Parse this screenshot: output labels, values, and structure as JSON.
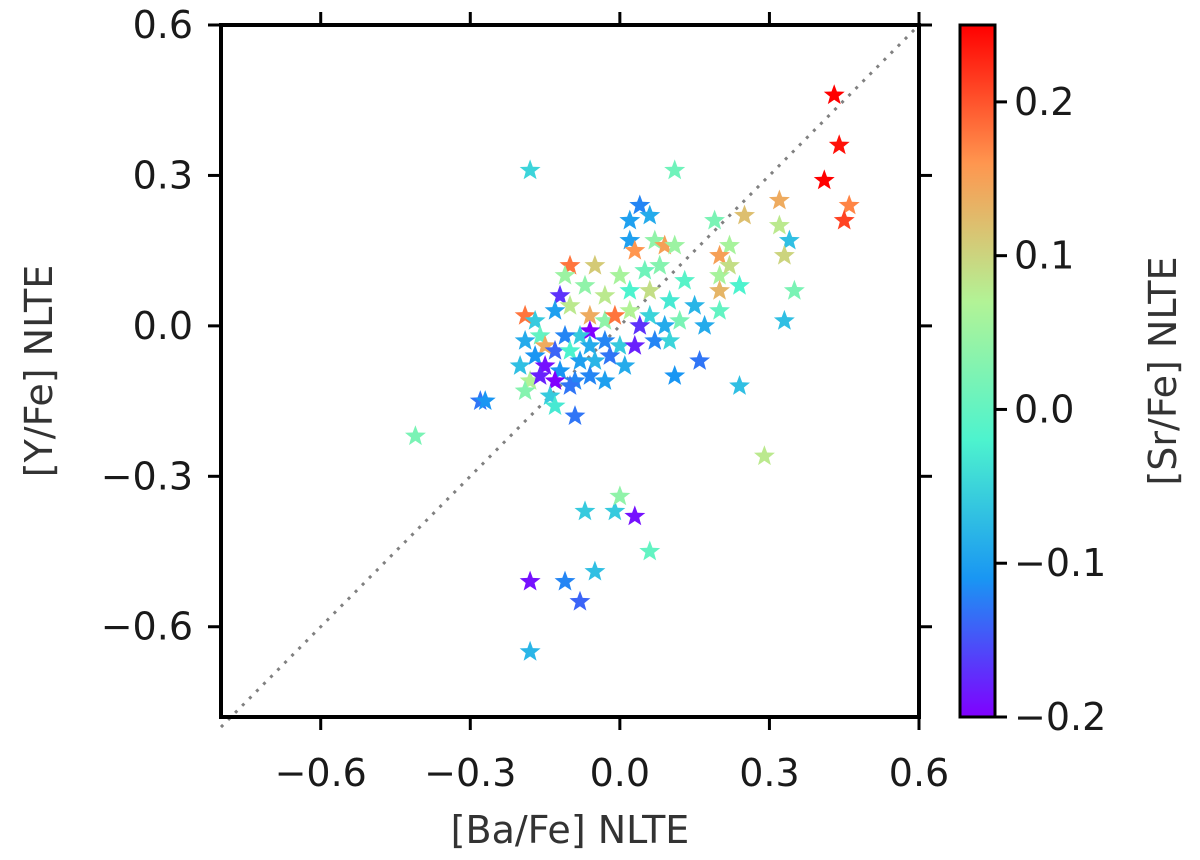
{
  "chart_data": {
    "type": "scatter",
    "marker": "star",
    "xlabel": "[Ba/Fe] NLTE",
    "ylabel": "[Y/Fe] NLTE",
    "xlim": [
      -0.8,
      0.6
    ],
    "ylim": [
      -0.78,
      0.6
    ],
    "xticks": [
      -0.6,
      -0.3,
      0.0,
      0.3,
      0.6
    ],
    "xtick_labels": [
      "−0.6",
      "−0.3",
      "0.0",
      "0.3",
      "0.6"
    ],
    "yticks": [
      -0.6,
      -0.3,
      0.0,
      0.3,
      0.6
    ],
    "ytick_labels": [
      "−0.6",
      "−0.3",
      "0.0",
      "0.3",
      "0.6"
    ],
    "reference_line": {
      "style": "dotted",
      "color": "#808080",
      "from": [
        -0.8,
        -0.8
      ],
      "to": [
        0.6,
        0.6
      ]
    },
    "colorbar": {
      "label": "[Sr/Fe] NLTE",
      "colormap": "rainbow",
      "range": [
        -0.2,
        0.25
      ],
      "ticks": [
        -0.2,
        -0.1,
        0.0,
        0.1,
        0.2
      ],
      "tick_labels": [
        "−0.2",
        "−0.1",
        "0.0",
        "0.1",
        "0.2"
      ],
      "gradient": [
        "#8000ff",
        "#1996f3",
        "#4df3ce",
        "#b2f396",
        "#ff964f",
        "#ff0000"
      ]
    },
    "points": [
      {
        "x": 0.43,
        "y": 0.46,
        "c": 0.25
      },
      {
        "x": 0.44,
        "y": 0.36,
        "c": 0.24
      },
      {
        "x": 0.41,
        "y": 0.29,
        "c": 0.25
      },
      {
        "x": 0.46,
        "y": 0.24,
        "c": 0.17
      },
      {
        "x": 0.45,
        "y": 0.21,
        "c": 0.21
      },
      {
        "x": 0.32,
        "y": 0.25,
        "c": 0.14
      },
      {
        "x": 0.25,
        "y": 0.22,
        "c": 0.12
      },
      {
        "x": 0.32,
        "y": 0.2,
        "c": 0.08
      },
      {
        "x": 0.34,
        "y": 0.17,
        "c": -0.07
      },
      {
        "x": 0.33,
        "y": 0.14,
        "c": 0.1
      },
      {
        "x": 0.35,
        "y": 0.07,
        "c": 0.02
      },
      {
        "x": 0.33,
        "y": 0.01,
        "c": -0.07
      },
      {
        "x": 0.24,
        "y": 0.08,
        "c": -0.02
      },
      {
        "x": 0.22,
        "y": 0.16,
        "c": 0.06
      },
      {
        "x": 0.19,
        "y": 0.21,
        "c": 0.02
      },
      {
        "x": 0.2,
        "y": 0.14,
        "c": 0.15
      },
      {
        "x": 0.2,
        "y": 0.1,
        "c": 0.06
      },
      {
        "x": 0.22,
        "y": 0.12,
        "c": 0.09
      },
      {
        "x": 0.2,
        "y": 0.07,
        "c": 0.13
      },
      {
        "x": 0.2,
        "y": 0.03,
        "c": 0.0
      },
      {
        "x": 0.24,
        "y": -0.12,
        "c": -0.07
      },
      {
        "x": 0.29,
        "y": -0.26,
        "c": 0.08
      },
      {
        "x": 0.16,
        "y": -0.07,
        "c": -0.13
      },
      {
        "x": 0.11,
        "y": -0.1,
        "c": -0.11
      },
      {
        "x": 0.11,
        "y": 0.31,
        "c": 0.01
      },
      {
        "x": -0.18,
        "y": 0.31,
        "c": -0.05
      },
      {
        "x": 0.04,
        "y": 0.24,
        "c": -0.12
      },
      {
        "x": 0.06,
        "y": 0.22,
        "c": -0.09
      },
      {
        "x": 0.02,
        "y": 0.21,
        "c": -0.1
      },
      {
        "x": 0.07,
        "y": 0.17,
        "c": 0.04
      },
      {
        "x": 0.09,
        "y": 0.16,
        "c": 0.15
      },
      {
        "x": 0.02,
        "y": 0.17,
        "c": -0.1
      },
      {
        "x": 0.11,
        "y": 0.16,
        "c": 0.05
      },
      {
        "x": 0.03,
        "y": 0.15,
        "c": 0.16
      },
      {
        "x": -0.05,
        "y": 0.12,
        "c": 0.11
      },
      {
        "x": -0.1,
        "y": 0.12,
        "c": 0.18
      },
      {
        "x": -0.11,
        "y": 0.1,
        "c": 0.05
      },
      {
        "x": -0.12,
        "y": 0.06,
        "c": -0.17
      },
      {
        "x": -0.07,
        "y": 0.08,
        "c": 0.04
      },
      {
        "x": -0.03,
        "y": 0.06,
        "c": 0.08
      },
      {
        "x": 0.0,
        "y": 0.1,
        "c": 0.06
      },
      {
        "x": 0.05,
        "y": 0.11,
        "c": 0.01
      },
      {
        "x": 0.08,
        "y": 0.12,
        "c": 0.03
      },
      {
        "x": 0.06,
        "y": 0.07,
        "c": 0.09
      },
      {
        "x": 0.02,
        "y": 0.07,
        "c": -0.02
      },
      {
        "x": 0.13,
        "y": 0.09,
        "c": -0.01
      },
      {
        "x": 0.1,
        "y": 0.05,
        "c": -0.03
      },
      {
        "x": 0.15,
        "y": 0.04,
        "c": -0.08
      },
      {
        "x": 0.12,
        "y": 0.01,
        "c": 0.02
      },
      {
        "x": 0.17,
        "y": 0.0,
        "c": -0.09
      },
      {
        "x": -0.19,
        "y": 0.02,
        "c": 0.18
      },
      {
        "x": -0.17,
        "y": 0.01,
        "c": -0.06
      },
      {
        "x": -0.13,
        "y": 0.03,
        "c": -0.1
      },
      {
        "x": -0.1,
        "y": 0.04,
        "c": 0.08
      },
      {
        "x": -0.06,
        "y": 0.02,
        "c": 0.14
      },
      {
        "x": -0.03,
        "y": 0.01,
        "c": 0.04
      },
      {
        "x": 0.02,
        "y": 0.03,
        "c": 0.07
      },
      {
        "x": 0.06,
        "y": 0.02,
        "c": -0.05
      },
      {
        "x": 0.09,
        "y": 0.0,
        "c": -0.09
      },
      {
        "x": 0.04,
        "y": 0.0,
        "c": -0.17
      },
      {
        "x": -0.01,
        "y": 0.02,
        "c": 0.18
      },
      {
        "x": -0.06,
        "y": -0.01,
        "c": -0.2
      },
      {
        "x": -0.08,
        "y": -0.02,
        "c": -0.06
      },
      {
        "x": -0.11,
        "y": -0.02,
        "c": -0.12
      },
      {
        "x": -0.16,
        "y": -0.02,
        "c": 0.0
      },
      {
        "x": -0.19,
        "y": -0.03,
        "c": -0.09
      },
      {
        "x": -0.15,
        "y": -0.04,
        "c": 0.14
      },
      {
        "x": -0.13,
        "y": -0.05,
        "c": -0.14
      },
      {
        "x": -0.1,
        "y": -0.05,
        "c": -0.02
      },
      {
        "x": -0.06,
        "y": -0.04,
        "c": -0.09
      },
      {
        "x": -0.03,
        "y": -0.03,
        "c": -0.12
      },
      {
        "x": 0.0,
        "y": -0.04,
        "c": -0.06
      },
      {
        "x": 0.03,
        "y": -0.04,
        "c": -0.18
      },
      {
        "x": 0.07,
        "y": -0.03,
        "c": -0.12
      },
      {
        "x": 0.1,
        "y": -0.03,
        "c": -0.05
      },
      {
        "x": -0.2,
        "y": -0.08,
        "c": -0.07
      },
      {
        "x": -0.17,
        "y": -0.06,
        "c": -0.11
      },
      {
        "x": -0.15,
        "y": -0.08,
        "c": -0.19
      },
      {
        "x": -0.12,
        "y": -0.09,
        "c": -0.11
      },
      {
        "x": -0.08,
        "y": -0.07,
        "c": -0.1
      },
      {
        "x": -0.05,
        "y": -0.07,
        "c": -0.08
      },
      {
        "x": -0.02,
        "y": -0.06,
        "c": -0.13
      },
      {
        "x": 0.01,
        "y": -0.08,
        "c": -0.09
      },
      {
        "x": -0.18,
        "y": -0.11,
        "c": 0.07
      },
      {
        "x": -0.16,
        "y": -0.1,
        "c": -0.18
      },
      {
        "x": -0.13,
        "y": -0.11,
        "c": -0.2
      },
      {
        "x": -0.09,
        "y": -0.11,
        "c": -0.12
      },
      {
        "x": -0.06,
        "y": -0.1,
        "c": -0.12
      },
      {
        "x": -0.03,
        "y": -0.11,
        "c": -0.1
      },
      {
        "x": -0.19,
        "y": -0.13,
        "c": 0.03
      },
      {
        "x": -0.14,
        "y": -0.14,
        "c": -0.06
      },
      {
        "x": -0.1,
        "y": -0.12,
        "c": -0.13
      },
      {
        "x": -0.13,
        "y": -0.16,
        "c": -0.03
      },
      {
        "x": -0.09,
        "y": -0.18,
        "c": -0.13
      },
      {
        "x": -0.28,
        "y": -0.15,
        "c": -0.13
      },
      {
        "x": -0.27,
        "y": -0.15,
        "c": -0.11
      },
      {
        "x": -0.41,
        "y": -0.22,
        "c": 0.02
      },
      {
        "x": -0.07,
        "y": -0.37,
        "c": -0.06
      },
      {
        "x": -0.01,
        "y": -0.37,
        "c": -0.06
      },
      {
        "x": 0.0,
        "y": -0.34,
        "c": 0.04
      },
      {
        "x": 0.03,
        "y": -0.38,
        "c": -0.19
      },
      {
        "x": 0.06,
        "y": -0.45,
        "c": 0.0
      },
      {
        "x": -0.05,
        "y": -0.49,
        "c": -0.07
      },
      {
        "x": -0.11,
        "y": -0.51,
        "c": -0.12
      },
      {
        "x": -0.18,
        "y": -0.51,
        "c": -0.19
      },
      {
        "x": -0.08,
        "y": -0.55,
        "c": -0.14
      },
      {
        "x": -0.18,
        "y": -0.65,
        "c": -0.08
      }
    ]
  }
}
